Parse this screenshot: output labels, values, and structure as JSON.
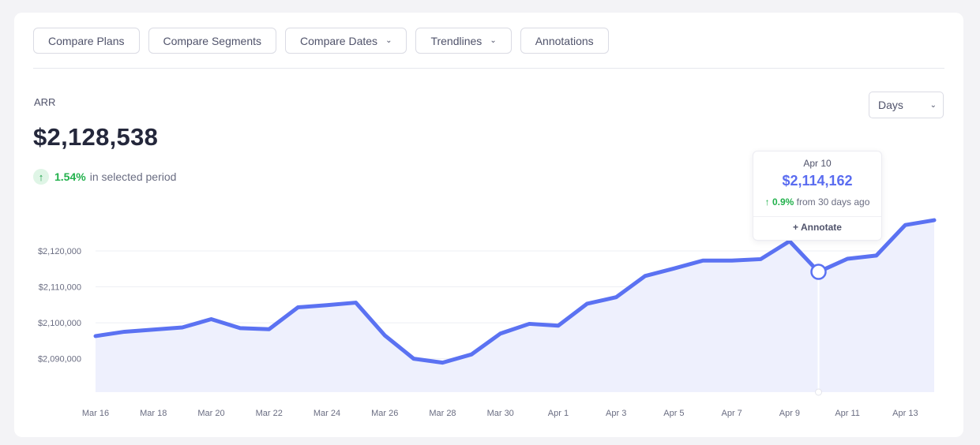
{
  "toolbar": {
    "compare_plans": "Compare Plans",
    "compare_segments": "Compare Segments",
    "compare_dates": "Compare Dates",
    "trendlines": "Trendlines",
    "annotations": "Annotations"
  },
  "metric": {
    "label": "ARR",
    "value": "$2,128,538",
    "change_pct": "1.54%",
    "change_text": "in selected period"
  },
  "period_select": {
    "value": "Days"
  },
  "tooltip": {
    "date": "Apr 10",
    "value": "$2,114,162",
    "change_pct": "0.9%",
    "change_text": "from 30 days ago",
    "annotate": "+ Annotate"
  },
  "colors": {
    "line": "#5b72f2",
    "area": "#eef0fd",
    "positive": "#22b14c",
    "grid": "#eeeff4"
  },
  "chart_data": {
    "type": "area",
    "x": [
      "Mar 16",
      "Mar 17",
      "Mar 18",
      "Mar 19",
      "Mar 20",
      "Mar 21",
      "Mar 22",
      "Mar 23",
      "Mar 24",
      "Mar 25",
      "Mar 26",
      "Mar 27",
      "Mar 28",
      "Mar 29",
      "Mar 30",
      "Mar 31",
      "Apr 1",
      "Apr 2",
      "Apr 3",
      "Apr 4",
      "Apr 5",
      "Apr 6",
      "Apr 7",
      "Apr 8",
      "Apr 9",
      "Apr 10",
      "Apr 11",
      "Apr 12",
      "Apr 13",
      "Apr 14"
    ],
    "x_tick_labels": [
      "Mar 16",
      "Mar 18",
      "Mar 20",
      "Mar 22",
      "Mar 24",
      "Mar 26",
      "Mar 28",
      "Mar 30",
      "Apr 1",
      "Apr 3",
      "Apr 5",
      "Apr 7",
      "Apr 9",
      "Apr 11",
      "Apr 13"
    ],
    "series": [
      {
        "values": [
          2096300,
          2097500,
          2098100,
          2098700,
          2101000,
          2098500,
          2098200,
          2104300,
          2104900,
          2105600,
          2096500,
          2090000,
          2088900,
          2091200,
          2097000,
          2099700,
          2099200,
          2105300,
          2107100,
          2113000,
          2115100,
          2117300,
          2117300,
          2117700,
          2122700,
          2114162,
          2117800,
          2118700,
          2127200,
          2128538
        ]
      }
    ],
    "y_ticks": [
      2090000,
      2100000,
      2110000,
      2120000
    ],
    "y_tick_labels": [
      "$2,090,000",
      "$2,100,000",
      "$2,110,000",
      "$2,120,000"
    ],
    "ylim": [
      2080700,
      2133600
    ],
    "grid": true,
    "highlight_index": 25
  }
}
